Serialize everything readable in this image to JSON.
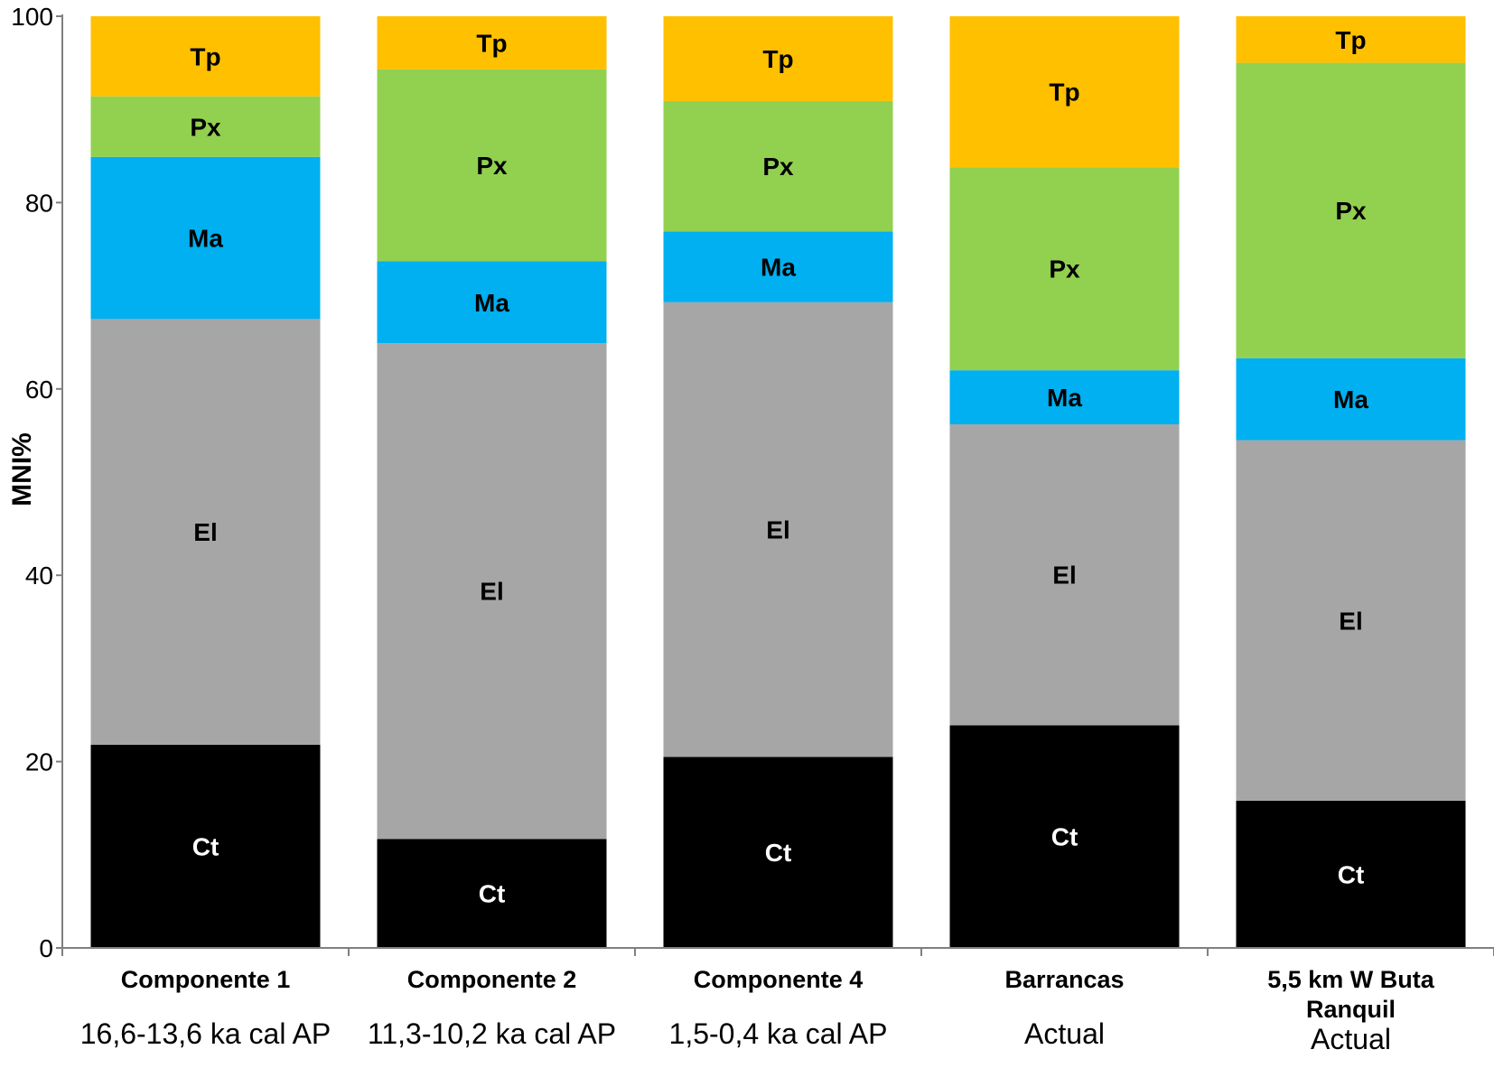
{
  "chart_data": {
    "type": "bar",
    "stacked": true,
    "title": "",
    "xlabel": "",
    "ylabel": "MNI%",
    "ylim": [
      0,
      100
    ],
    "yticks": [
      0,
      20,
      40,
      60,
      80,
      100
    ],
    "grid": false,
    "legend": "none (segments labeled inline)",
    "categories": [
      {
        "name": "Componente 1",
        "sub": "16,6-13,6 ka cal AP"
      },
      {
        "name": "Componente 2",
        "sub": "11,3-10,2 ka cal AP"
      },
      {
        "name": "Componente 4",
        "sub": "1,5-0,4 ka cal AP"
      },
      {
        "name": "Barrancas",
        "sub": "Actual"
      },
      {
        "name": "5,5 km W Buta Ranquil",
        "sub": "Actual"
      }
    ],
    "series": [
      {
        "name": "Ct",
        "color": "#000000",
        "label_color": "#ffffff",
        "values": [
          21.8,
          11.7,
          20.5,
          23.9,
          15.8
        ]
      },
      {
        "name": "El",
        "color": "#a6a6a6",
        "label_color": "#000000",
        "values": [
          45.7,
          53.2,
          48.8,
          32.3,
          38.7
        ]
      },
      {
        "name": "Ma",
        "color": "#00b0f0",
        "label_color": "#000000",
        "values": [
          17.4,
          8.8,
          7.6,
          5.8,
          8.8
        ]
      },
      {
        "name": "Px",
        "color": "#92d050",
        "label_color": "#000000",
        "values": [
          6.5,
          20.6,
          14.0,
          21.8,
          31.7
        ]
      },
      {
        "name": "Tp",
        "color": "#ffc000",
        "label_color": "#000000",
        "values": [
          8.6,
          5.7,
          9.1,
          16.2,
          5.0
        ]
      }
    ]
  }
}
